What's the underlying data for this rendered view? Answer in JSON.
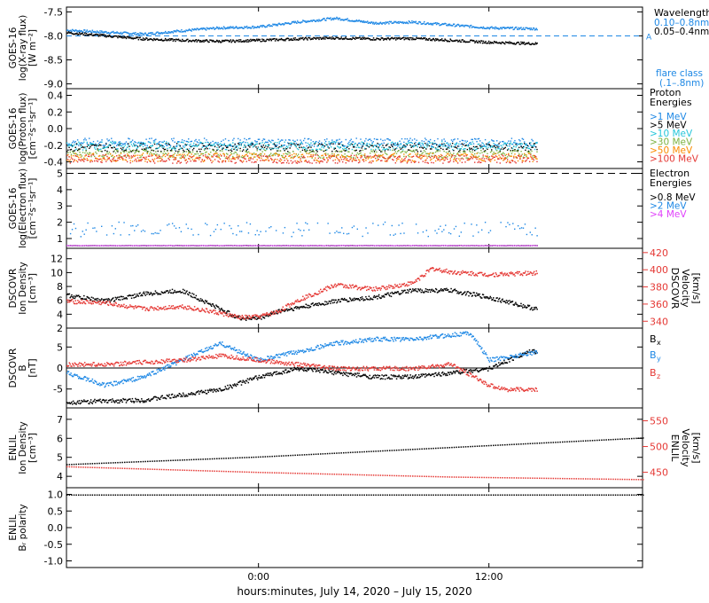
{
  "xlabel": "hours:minutes, July 14, 2020 – July 15, 2020",
  "colors": {
    "black": "#000000",
    "blue": "#1e88e5",
    "red": "#e53935",
    "cyan": "#26c6da",
    "green": "#7cb342",
    "orange": "#fb8c00",
    "magenta": "#e040fb"
  },
  "chart_data": [
    {
      "id": "xray",
      "type": "line",
      "ylabel_lines": [
        "GOES-16",
        "log(X-ray flux)",
        "[W m⁻²]"
      ],
      "ylim": [
        -9.1,
        -7.4
      ],
      "yticks": [
        "-7.5",
        "-8.0",
        "-8.5",
        "-9.0"
      ],
      "ytick_values": [
        -7.5,
        -8.0,
        -8.5,
        -9.0
      ],
      "legend_title": "Wavelength",
      "series": [
        {
          "name": "0.10–0.8nm",
          "color": "#1e88e5",
          "x": [
            -10,
            -6,
            -4,
            -2,
            0,
            2,
            4,
            6,
            8,
            10,
            12,
            14.5
          ],
          "y": [
            -7.87,
            -7.95,
            -7.88,
            -7.82,
            -7.8,
            -7.7,
            -7.62,
            -7.72,
            -7.7,
            -7.76,
            -7.82,
            -7.84
          ]
        },
        {
          "name": "0.05–0.4nm",
          "color": "#000000",
          "x": [
            -10,
            -6,
            -4,
            -2,
            0,
            2,
            4,
            6,
            8,
            10,
            12,
            14.5
          ],
          "y": [
            -7.92,
            -8.05,
            -8.08,
            -8.1,
            -8.08,
            -8.05,
            -8.03,
            -8.05,
            -8.04,
            -8.08,
            -8.12,
            -8.15
          ]
        }
      ],
      "hline": {
        "y": -8.0,
        "label": "A"
      },
      "extra_labels": [
        "flare class",
        "(.1–.8nm)"
      ]
    },
    {
      "id": "proton",
      "type": "scatter",
      "ylabel_lines": [
        "GOES-16",
        "log(Proton flux)",
        "[cm⁻²s⁻¹sr⁻¹]"
      ],
      "ylim": [
        -0.48,
        0.48
      ],
      "yticks": [
        "0.4",
        "0.2",
        "0.0",
        "-0.2",
        "-0.4"
      ],
      "ytick_values": [
        0.4,
        0.2,
        0.0,
        -0.2,
        -0.4
      ],
      "legend_title": "Proton Energies",
      "series": [
        {
          "name": ">1 MeV",
          "color": "#1e88e5",
          "y_mean": -0.16
        },
        {
          "name": ">5 MeV",
          "color": "#000000",
          "y_mean": -0.22
        },
        {
          "name": ">10 MeV",
          "color": "#26c6da",
          "y_mean": -0.2
        },
        {
          "name": ">30 MeV",
          "color": "#7cb342",
          "y_mean": -0.3
        },
        {
          "name": ">50 MeV",
          "color": "#fb8c00",
          "y_mean": -0.34
        },
        {
          "name": ">100 MeV",
          "color": "#e53935",
          "y_mean": -0.36
        }
      ]
    },
    {
      "id": "electron",
      "type": "scatter",
      "ylabel_lines": [
        "GOES-16",
        "log(Electron flux)",
        "[cm⁻²s⁻¹sr⁻¹]"
      ],
      "ylim": [
        0.4,
        5.3
      ],
      "yticks": [
        "5",
        "4",
        "3",
        "2",
        "1"
      ],
      "ytick_values": [
        5,
        4,
        3,
        2,
        1
      ],
      "legend_title": "Electron Energies",
      "series": [
        {
          "name": ">0.8 MeV",
          "color": "#000000",
          "y_mean": 0.6
        },
        {
          "name": ">2 MeV",
          "color": "#1e88e5",
          "y_mean": 1.6
        },
        {
          "name": ">4 MeV",
          "color": "#e040fb",
          "y_mean": 0.6
        }
      ],
      "hline": {
        "y": 5.0
      }
    },
    {
      "id": "dscovr_density",
      "type": "line",
      "ylabel_lines": [
        "DSCOVR",
        "Ion Density",
        "[cm⁻³]"
      ],
      "ylim": [
        2,
        13.5
      ],
      "yticks": [
        "12",
        "10",
        "8",
        "6",
        "4",
        "2"
      ],
      "ytick_values": [
        12,
        10,
        8,
        6,
        4,
        2
      ],
      "right_ylabel_lines": [
        "DSCOVR",
        "Velocity",
        "[km/s]"
      ],
      "right_ylim": [
        332,
        425
      ],
      "right_yticks": [
        "420",
        "400",
        "380",
        "360",
        "340"
      ],
      "right_ytick_values": [
        420,
        400,
        380,
        360,
        340
      ],
      "series": [
        {
          "name": "Ion Density",
          "color": "#000000",
          "axis": "left",
          "x": [
            -10,
            -8,
            -6,
            -4,
            -2,
            -1,
            0,
            1,
            2,
            4,
            6,
            8,
            10,
            12,
            14.5
          ],
          "y": [
            6.8,
            6.0,
            7.0,
            7.5,
            4.8,
            3.5,
            3.5,
            4.5,
            5.0,
            6.0,
            6.5,
            7.5,
            7.5,
            6.5,
            4.8
          ]
        },
        {
          "name": "Velocity",
          "color": "#e53935",
          "axis": "right",
          "x": [
            -10,
            -8,
            -6,
            -4,
            -2,
            -1,
            0,
            1,
            2,
            4,
            6,
            8,
            9,
            10,
            12,
            14.5
          ],
          "y": [
            364,
            362,
            355,
            358,
            350,
            345,
            346,
            352,
            365,
            383,
            378,
            385,
            402,
            398,
            395,
            397
          ]
        }
      ]
    },
    {
      "id": "dscovr_b",
      "type": "line",
      "ylabel_lines": [
        "DSCOVR",
        "B",
        "[nT]"
      ],
      "ylim": [
        -9.5,
        9.5
      ],
      "yticks": [
        "5",
        "0",
        "-5"
      ],
      "ytick_values": [
        5,
        0,
        -5
      ],
      "hline": {
        "y": 0
      },
      "series": [
        {
          "name": "Bx",
          "color": "#000000",
          "x": [
            -10,
            -6,
            -2,
            0,
            2,
            4,
            6,
            8,
            10,
            12,
            14,
            14.5
          ],
          "y": [
            -8,
            -7.5,
            -5,
            -2,
            0,
            -1,
            -2,
            -2,
            -1,
            0,
            4,
            4
          ]
        },
        {
          "name": "By",
          "color": "#1e88e5",
          "x": [
            -10,
            -8,
            -6,
            -4,
            -3,
            -2,
            0,
            2,
            4,
            6,
            8,
            10,
            11,
            12,
            14.5
          ],
          "y": [
            -1,
            -4,
            -2,
            2,
            4,
            6,
            2,
            4,
            6,
            7,
            7,
            8,
            8.5,
            2,
            4
          ]
        },
        {
          "name": "Bz",
          "color": "#e53935",
          "x": [
            -10,
            -8,
            -6,
            -4,
            -2,
            0,
            2,
            4,
            6,
            8,
            10,
            12,
            13,
            14.5
          ],
          "y": [
            1,
            1,
            1.5,
            2,
            3,
            2,
            1,
            0,
            0,
            0,
            1,
            -4,
            -5,
            -5
          ]
        }
      ]
    },
    {
      "id": "enlil_density",
      "type": "line",
      "ylabel_lines": [
        "ENLIL",
        "Ion Density",
        "[cm⁻³]"
      ],
      "ylim": [
        3.4,
        7.6
      ],
      "yticks": [
        "7",
        "6",
        "5",
        "4"
      ],
      "ytick_values": [
        7,
        6,
        5,
        4
      ],
      "right_ylabel_lines": [
        "ENLIL",
        "Velocity",
        "[km/s]"
      ],
      "right_ylim": [
        420,
        575
      ],
      "right_yticks": [
        "550",
        "500",
        "450"
      ],
      "right_ytick_values": [
        550,
        500,
        450
      ],
      "series": [
        {
          "name": "Ion Density",
          "color": "#000000",
          "axis": "left",
          "x": [
            -10,
            0,
            10,
            20
          ],
          "y": [
            4.65,
            5.05,
            5.55,
            6.05
          ]
        },
        {
          "name": "Velocity",
          "color": "#e53935",
          "axis": "right",
          "x": [
            -10,
            0,
            10,
            20
          ],
          "y": [
            462,
            451,
            442,
            437
          ]
        }
      ]
    },
    {
      "id": "enlil_polarity",
      "type": "line",
      "ylabel_lines": [
        "ENLIL",
        "Bᵣ polarity"
      ],
      "ylim": [
        -1.2,
        1.2
      ],
      "yticks": [
        "1.0",
        "0.5",
        "0.0",
        "-0.5",
        "-1.0"
      ],
      "ytick_values": [
        1.0,
        0.5,
        0.0,
        -0.5,
        -1.0
      ],
      "series": [
        {
          "name": "Br polarity",
          "color": "#000000",
          "x": [
            -10,
            20
          ],
          "y": [
            1.0,
            1.0
          ]
        }
      ]
    }
  ],
  "xaxis": {
    "xlim": [
      -10,
      20
    ],
    "ticks": [
      "0:00",
      "12:00"
    ],
    "tick_values": [
      0,
      12
    ]
  }
}
